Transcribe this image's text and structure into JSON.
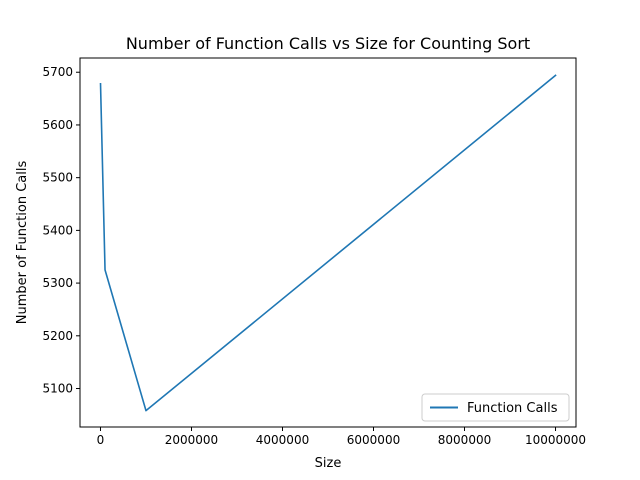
{
  "chart_data": {
    "type": "line",
    "title": "Number of Function Calls vs Size for Counting Sort",
    "xlabel": "Size",
    "ylabel": "Number of Function Calls",
    "xlim": [
      -450000,
      10450000
    ],
    "ylim": [
      5027,
      5727
    ],
    "x_ticks": [
      0,
      2000000,
      4000000,
      6000000,
      8000000,
      10000000
    ],
    "x_tick_labels": [
      "0",
      "2000000",
      "4000000",
      "6000000",
      "8000000",
      "10000000"
    ],
    "y_ticks": [
      5100,
      5200,
      5300,
      5400,
      5500,
      5600,
      5700
    ],
    "y_tick_labels": [
      "5100",
      "5200",
      "5300",
      "5400",
      "5500",
      "5600",
      "5700"
    ],
    "grid": false,
    "legend_position": "lower-right",
    "series": [
      {
        "name": "Function Calls",
        "color": "#1f77b4",
        "x": [
          1000,
          100000,
          1000000,
          10000000
        ],
        "y": [
          5678,
          5325,
          5058,
          5694
        ]
      }
    ]
  }
}
